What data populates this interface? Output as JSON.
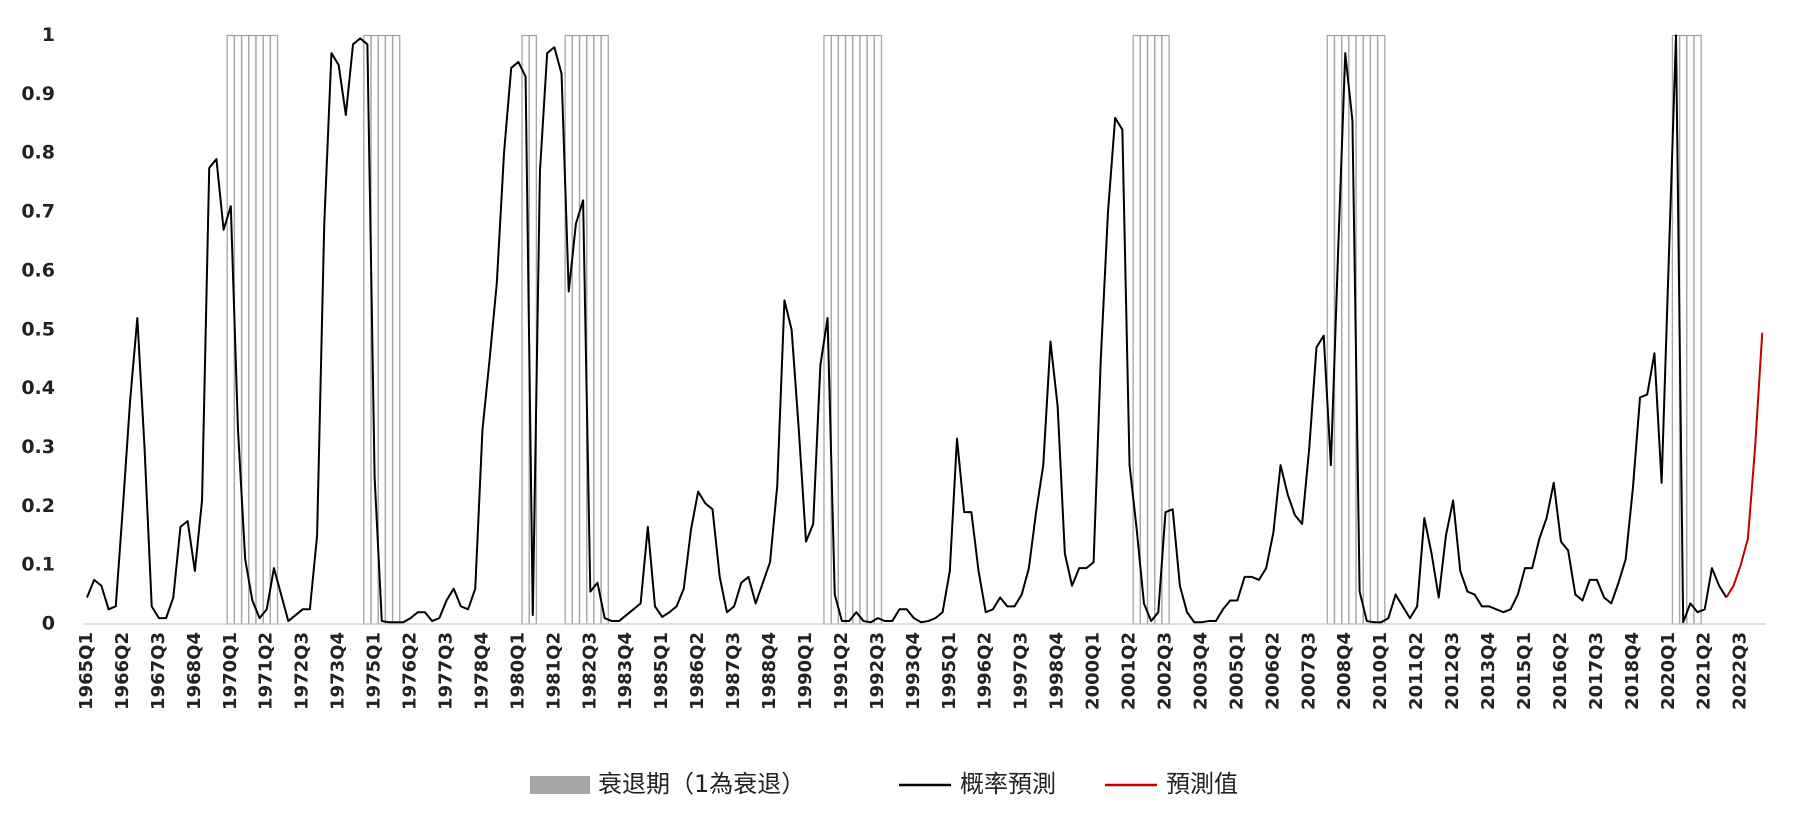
{
  "chart_data": {
    "type": "line",
    "legend": "bottom",
    "grid": false,
    "ylim": [
      0,
      1
    ],
    "yticks": [
      0,
      0.1,
      0.2,
      0.3,
      0.4,
      0.5,
      0.6,
      0.7,
      0.8,
      0.9,
      1
    ],
    "categories": [
      "1965Q1",
      null,
      null,
      null,
      null,
      "1966Q2",
      null,
      null,
      null,
      null,
      "1967Q3",
      null,
      null,
      null,
      null,
      "1968Q4",
      null,
      null,
      null,
      null,
      "1970Q1",
      null,
      null,
      null,
      null,
      "1971Q2",
      null,
      null,
      null,
      null,
      "1972Q3",
      null,
      null,
      null,
      null,
      "1973Q4",
      null,
      null,
      null,
      null,
      "1975Q1",
      null,
      null,
      null,
      null,
      "1976Q2",
      null,
      null,
      null,
      null,
      "1977Q3",
      null,
      null,
      null,
      null,
      "1978Q4",
      null,
      null,
      null,
      null,
      "1980Q1",
      null,
      null,
      null,
      null,
      "1981Q2",
      null,
      null,
      null,
      null,
      "1982Q3",
      null,
      null,
      null,
      null,
      "1983Q4",
      null,
      null,
      null,
      null,
      "1985Q1",
      null,
      null,
      null,
      null,
      "1986Q2",
      null,
      null,
      null,
      null,
      "1987Q3",
      null,
      null,
      null,
      null,
      "1988Q4",
      null,
      null,
      null,
      null,
      "1990Q1",
      null,
      null,
      null,
      null,
      "1991Q2",
      null,
      null,
      null,
      null,
      "1992Q3",
      null,
      null,
      null,
      null,
      "1993Q4",
      null,
      null,
      null,
      null,
      "1995Q1",
      null,
      null,
      null,
      null,
      "1996Q2",
      null,
      null,
      null,
      null,
      "1997Q3",
      null,
      null,
      null,
      null,
      "1998Q4",
      null,
      null,
      null,
      null,
      "2000Q1",
      null,
      null,
      null,
      null,
      "2001Q2",
      null,
      null,
      null,
      null,
      "2002Q3",
      null,
      null,
      null,
      null,
      "2003Q4",
      null,
      null,
      null,
      null,
      "2005Q1",
      null,
      null,
      null,
      null,
      "2006Q2",
      null,
      null,
      null,
      null,
      "2007Q3",
      null,
      null,
      null,
      null,
      "2008Q4",
      null,
      null,
      null,
      null,
      "2010Q1",
      null,
      null,
      null,
      null,
      "2011Q2",
      null,
      null,
      null,
      null,
      "2012Q3",
      null,
      null,
      null,
      null,
      "2013Q4",
      null,
      null,
      null,
      null,
      "2015Q1",
      null,
      null,
      null,
      null,
      "2016Q2",
      null,
      null,
      null,
      null,
      "2017Q3",
      null,
      null,
      null,
      null,
      "2018Q4",
      null,
      null,
      null,
      null,
      "2020Q1",
      null,
      null,
      null,
      null,
      "2021Q2",
      null,
      null,
      null,
      null,
      "2022Q3",
      null,
      null,
      null
    ],
    "series": [
      {
        "name": "衰退期（1為衰退）",
        "type": "bar",
        "color": "#a6a6a6",
        "values": [
          0,
          0,
          0,
          0,
          0,
          0,
          0,
          0,
          0,
          0,
          0,
          0,
          0,
          0,
          0,
          0,
          0,
          0,
          0,
          0,
          1,
          1,
          1,
          1,
          1,
          1,
          1,
          0,
          0,
          0,
          0,
          0,
          0,
          0,
          0,
          0,
          0,
          0,
          0,
          1,
          1,
          1,
          1,
          1,
          0,
          0,
          0,
          0,
          0,
          0,
          0,
          0,
          0,
          0,
          0,
          0,
          0,
          0,
          0,
          0,
          0,
          1,
          1,
          0,
          0,
          0,
          0,
          1,
          1,
          1,
          1,
          1,
          1,
          0,
          0,
          0,
          0,
          0,
          0,
          0,
          0,
          0,
          0,
          0,
          0,
          0,
          0,
          0,
          0,
          0,
          0,
          0,
          0,
          0,
          0,
          0,
          0,
          0,
          0,
          0,
          0,
          0,
          0,
          1,
          1,
          1,
          1,
          1,
          1,
          1,
          1,
          0,
          0,
          0,
          0,
          0,
          0,
          0,
          0,
          0,
          0,
          0,
          0,
          0,
          0,
          0,
          0,
          0,
          0,
          0,
          0,
          0,
          0,
          0,
          0,
          0,
          0,
          0,
          0,
          0,
          0,
          0,
          0,
          0,
          0,
          0,
          1,
          1,
          1,
          1,
          1,
          0,
          0,
          0,
          0,
          0,
          0,
          0,
          0,
          0,
          0,
          0,
          0,
          0,
          0,
          0,
          0,
          0,
          0,
          0,
          0,
          0,
          0,
          1,
          1,
          1,
          1,
          1,
          1,
          1,
          1,
          0,
          0,
          0,
          0,
          0,
          0,
          0,
          0,
          0,
          0,
          0,
          0,
          0,
          0,
          0,
          0,
          0,
          0,
          0,
          0,
          0,
          0,
          0,
          0,
          0,
          0,
          0,
          0,
          0,
          0,
          0,
          0,
          0,
          0,
          0,
          0,
          0,
          0,
          0,
          0,
          1,
          1,
          1,
          1,
          0,
          0,
          0,
          0,
          0,
          0,
          0,
          0,
          0
        ]
      },
      {
        "name": "概率預測",
        "color": "#000000",
        "values": [
          0.045,
          0.075,
          0.065,
          0.025,
          0.03,
          0.2,
          0.38,
          0.52,
          0.3,
          0.03,
          0.01,
          0.01,
          0.045,
          0.165,
          0.175,
          0.09,
          0.21,
          0.775,
          0.79,
          0.67,
          0.71,
          0.33,
          0.11,
          0.04,
          0.01,
          0.025,
          0.095,
          0.05,
          0.005,
          0.015,
          0.025,
          0.025,
          0.15,
          0.68,
          0.97,
          0.95,
          0.865,
          0.985,
          0.995,
          0.985,
          0.25,
          0.005,
          0.003,
          0.003,
          0.003,
          0.01,
          0.02,
          0.02,
          0.005,
          0.01,
          0.04,
          0.06,
          0.03,
          0.025,
          0.06,
          0.33,
          0.45,
          0.58,
          0.8,
          0.945,
          0.955,
          0.93,
          0.015,
          0.77,
          0.97,
          0.98,
          0.935,
          0.565,
          0.68,
          0.72,
          0.055,
          0.07,
          0.01,
          0.005,
          0.005,
          0.015,
          0.025,
          0.035,
          0.165,
          0.03,
          0.012,
          0.02,
          0.03,
          0.06,
          0.16,
          0.225,
          0.205,
          0.195,
          0.08,
          0.02,
          0.03,
          0.07,
          0.08,
          0.035,
          0.07,
          0.105,
          0.235,
          0.55,
          0.5,
          0.33,
          0.14,
          0.17,
          0.44,
          0.52,
          0.05,
          0.005,
          0.005,
          0.02,
          0.005,
          0.003,
          0.01,
          0.005,
          0.005,
          0.025,
          0.025,
          0.01,
          0.003,
          0.005,
          0.01,
          0.02,
          0.09,
          0.315,
          0.19,
          0.19,
          0.09,
          0.02,
          0.025,
          0.045,
          0.03,
          0.03,
          0.05,
          0.095,
          0.19,
          0.27,
          0.48,
          0.37,
          0.12,
          0.065,
          0.095,
          0.095,
          0.105,
          0.45,
          0.7,
          0.86,
          0.84,
          0.27,
          0.16,
          0.035,
          0.005,
          0.02,
          0.19,
          0.195,
          0.065,
          0.02,
          0.003,
          0.003,
          0.005,
          0.005,
          0.025,
          0.04,
          0.04,
          0.08,
          0.08,
          0.075,
          0.095,
          0.155,
          0.27,
          0.22,
          0.185,
          0.17,
          0.3,
          0.47,
          0.49,
          0.27,
          0.63,
          0.97,
          0.855,
          0.055,
          0.005,
          0.003,
          0.003,
          0.01,
          0.05,
          0.03,
          0.01,
          0.03,
          0.18,
          0.12,
          0.045,
          0.15,
          0.21,
          0.09,
          0.055,
          0.05,
          0.03,
          0.03,
          0.025,
          0.02,
          0.025,
          0.05,
          0.095,
          0.095,
          0.145,
          0.18,
          0.24,
          0.14,
          0.125,
          0.05,
          0.04,
          0.075,
          0.075,
          0.045,
          0.035,
          0.07,
          0.11,
          0.23,
          0.385,
          0.39,
          0.46,
          0.24,
          0.62,
          1,
          0.003,
          0.035,
          0.02,
          0.025,
          0.095,
          0.065,
          0.045,
          null,
          null,
          null,
          null,
          null
        ]
      },
      {
        "name": "預測值",
        "color": "#c00000",
        "values": [
          null,
          null,
          null,
          null,
          null,
          null,
          null,
          null,
          null,
          null,
          null,
          null,
          null,
          null,
          null,
          null,
          null,
          null,
          null,
          null,
          null,
          null,
          null,
          null,
          null,
          null,
          null,
          null,
          null,
          null,
          null,
          null,
          null,
          null,
          null,
          null,
          null,
          null,
          null,
          null,
          null,
          null,
          null,
          null,
          null,
          null,
          null,
          null,
          null,
          null,
          null,
          null,
          null,
          null,
          null,
          null,
          null,
          null,
          null,
          null,
          null,
          null,
          null,
          null,
          null,
          null,
          null,
          null,
          null,
          null,
          null,
          null,
          null,
          null,
          null,
          null,
          null,
          null,
          null,
          null,
          null,
          null,
          null,
          null,
          null,
          null,
          null,
          null,
          null,
          null,
          null,
          null,
          null,
          null,
          null,
          null,
          null,
          null,
          null,
          null,
          null,
          null,
          null,
          null,
          null,
          null,
          null,
          null,
          null,
          null,
          null,
          null,
          null,
          null,
          null,
          null,
          null,
          null,
          null,
          null,
          null,
          null,
          null,
          null,
          null,
          null,
          null,
          null,
          null,
          null,
          null,
          null,
          null,
          null,
          null,
          null,
          null,
          null,
          null,
          null,
          null,
          null,
          null,
          null,
          null,
          null,
          null,
          null,
          null,
          null,
          null,
          null,
          null,
          null,
          null,
          null,
          null,
          null,
          null,
          null,
          null,
          null,
          null,
          null,
          null,
          null,
          null,
          null,
          null,
          null,
          null,
          null,
          null,
          null,
          null,
          null,
          null,
          null,
          null,
          null,
          null,
          null,
          null,
          null,
          null,
          null,
          null,
          null,
          null,
          null,
          null,
          null,
          null,
          null,
          null,
          null,
          null,
          null,
          null,
          null,
          null,
          null,
          null,
          null,
          null,
          null,
          null,
          null,
          null,
          null,
          null,
          null,
          null,
          null,
          null,
          null,
          null,
          null,
          null,
          null,
          null,
          null,
          null,
          null,
          null,
          null,
          null,
          null,
          0.045,
          0.065,
          0.1,
          0.145,
          0.3,
          0.495
        ]
      }
    ]
  }
}
